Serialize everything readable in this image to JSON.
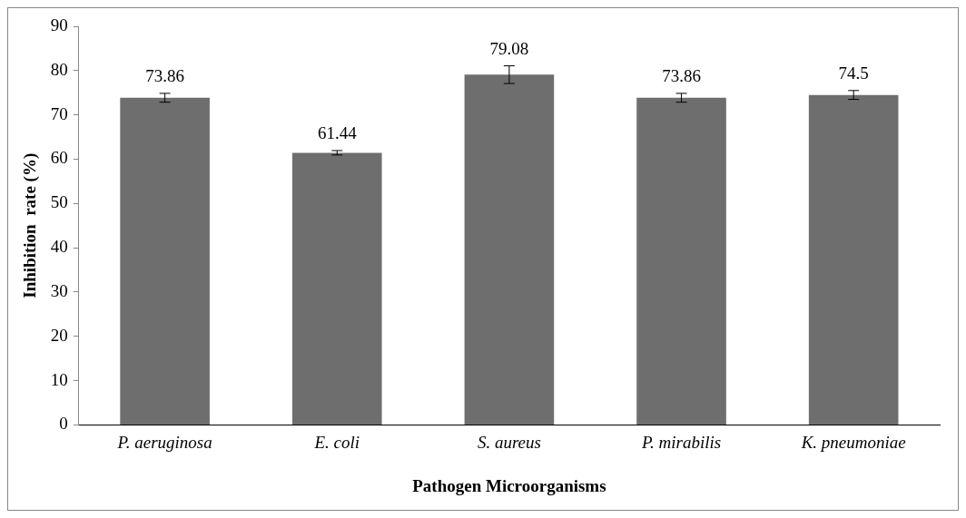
{
  "chart_data": {
    "type": "bar",
    "xlabel": "Pathogen Microorganisms",
    "ylabel": "Inhibition  rate (%)",
    "categories": [
      "P. aeruginosa",
      "E. coli",
      "S. aureus",
      "P. mirabilis",
      "K. pneumoniae"
    ],
    "values": [
      73.86,
      61.44,
      79.08,
      73.86,
      74.5
    ],
    "errors": [
      1,
      0.5,
      2,
      1,
      1
    ],
    "color": "#6e6e6e",
    "data_labels": true,
    "ylim": [
      0,
      90
    ],
    "yticks": [
      0,
      10,
      20,
      30,
      40,
      50,
      60,
      70,
      80,
      90
    ],
    "grid": false,
    "legend": false
  }
}
